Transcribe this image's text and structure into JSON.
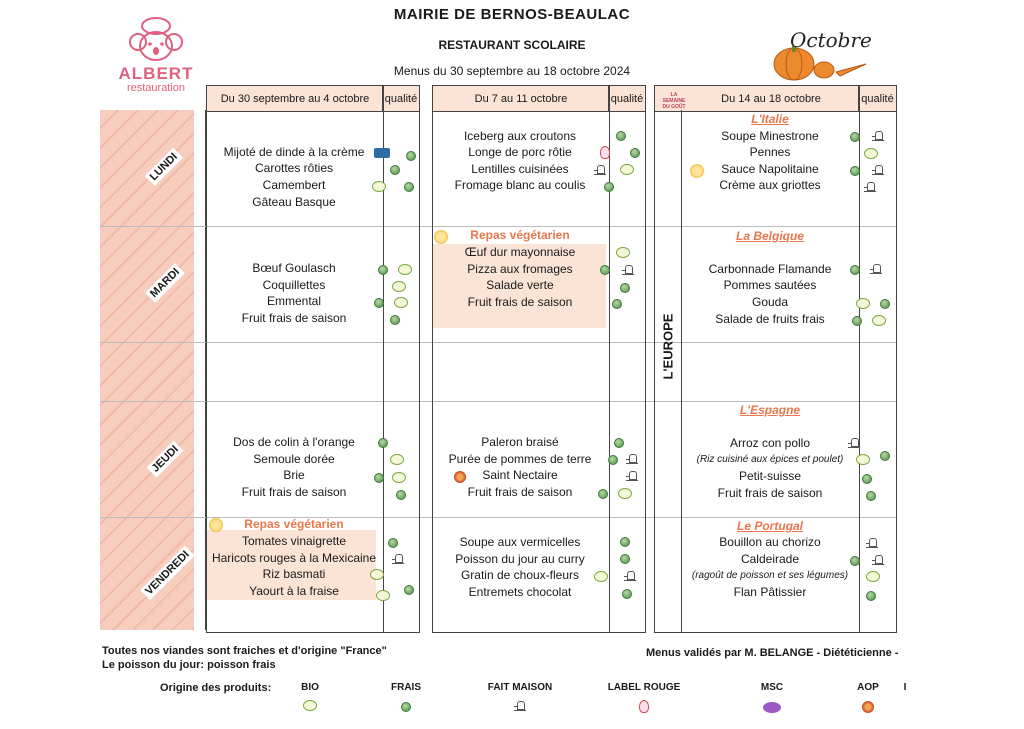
{
  "header": {
    "mairie": "MAIRIE DE BERNOS-BEAULAC",
    "restaurant": "RESTAURANT SCOLAIRE",
    "period": "Menus du 30 septembre au 18 octobre 2024"
  },
  "logo": {
    "brand": "ALBERT",
    "brand_sub": "restauration"
  },
  "october_art": {
    "text": "Octobre"
  },
  "days": [
    "LUNDI",
    "MARDI",
    "JEUDI",
    "VENDREDI"
  ],
  "quality_label": "qualité",
  "weeks": [
    {
      "title": "Du 30 septembre au 4 octobre",
      "lundi": [
        "Mijoté de dinde à la crème",
        "Carottes rôties",
        "Camembert",
        "Gâteau Basque"
      ],
      "mardi": [
        "Bœuf Goulasch",
        "Coquillettes",
        "Emmental",
        "Fruit frais de saison"
      ],
      "jeudi": [
        "Dos de colin à l'orange",
        "Semoule dorée",
        "Brie",
        "Fruit frais de saison"
      ],
      "vendredi_label": "Repas végétarien",
      "vendredi": [
        "Tomates vinaigrette",
        "Haricots rouges à la Mexicaine",
        "Riz basmati",
        "Yaourt à la fraise"
      ]
    },
    {
      "title": "Du 7 au 11 octobre",
      "lundi": [
        "Iceberg aux croutons",
        "Longe de porc rôtie",
        "Lentilles cuisinées",
        "Fromage blanc au coulis"
      ],
      "mardi_label": "Repas végétarien",
      "mardi": [
        "Œuf dur mayonnaise",
        "Pizza aux fromages",
        "Salade verte",
        "Fruit frais de saison"
      ],
      "jeudi": [
        "Paleron braisé",
        "Purée de pommes de terre",
        "Saint Nectaire",
        "Fruit frais de saison"
      ],
      "vendredi": [
        "Soupe aux vermicelles",
        "Poisson du jour au curry",
        "Gratin de choux-fleurs",
        "Entremets chocolat"
      ]
    },
    {
      "title": "Du 14 au 18 octobre",
      "theme_band": "L'EUROPE",
      "semaine_badge": "LA SEMAINE DU GOÛT",
      "lundi_theme": "L'Italie",
      "lundi": [
        "Soupe Minestrone",
        "Pennes",
        "Sauce Napolitaine",
        "Crème aux griottes"
      ],
      "mardi_theme": "La Belgique",
      "mardi": [
        "Carbonnade Flamande",
        "Pommes sautées",
        "Gouda",
        "Salade de fruits frais"
      ],
      "jeudi_theme": "L'Espagne",
      "jeudi": [
        "Arroz con pollo",
        "(Riz cuisiné aux épices et poulet)",
        "Petit-suisse",
        "Fruit frais de saison"
      ],
      "vendredi_theme": "Le Portugal",
      "vendredi": [
        "Bouillon au chorizo",
        "Caldeirade",
        "(ragoût de poisson et ses légumes)",
        "Flan Pâtissier"
      ]
    }
  ],
  "footer": {
    "note1": "Toutes nos viandes sont fraiches et d'origine \"France\"",
    "note2": "Le poisson du jour: poisson frais",
    "validated": "Menus validés  par M. BELANGE - Diététicienne -",
    "origin_label": "Origine des produits:",
    "legend": [
      "BIO",
      "FRAIS",
      "FAIT MAISON",
      "LABEL ROUGE",
      "MSC",
      "AOP"
    ],
    "trailing_mark": "I"
  },
  "colors": {
    "accent": "#e8774d",
    "header_fill": "#fbe4d5",
    "stripe": "#f7cdbd",
    "brand": "#e0607e"
  }
}
